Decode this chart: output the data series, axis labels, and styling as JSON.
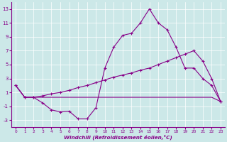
{
  "xlabel": "Windchill (Refroidissement éolien,°C)",
  "bg_color": "#cce8e8",
  "line_color": "#880088",
  "xlim": [
    -0.5,
    23.5
  ],
  "ylim": [
    -4,
    14
  ],
  "xticks": [
    0,
    1,
    2,
    3,
    4,
    5,
    6,
    7,
    8,
    9,
    10,
    11,
    12,
    13,
    14,
    15,
    16,
    17,
    18,
    19,
    20,
    21,
    22,
    23
  ],
  "yticks": [
    -3,
    -1,
    1,
    3,
    5,
    7,
    9,
    11,
    13
  ],
  "line1_x": [
    0,
    1,
    2,
    3,
    4,
    5,
    6,
    7,
    8,
    9,
    10,
    11,
    12,
    13,
    14,
    15,
    16,
    17,
    18,
    19,
    20,
    21,
    22,
    23
  ],
  "line1_y": [
    2.0,
    0.3,
    0.3,
    -0.5,
    -1.5,
    -1.8,
    -1.7,
    -2.8,
    -2.8,
    -1.2,
    4.5,
    7.5,
    9.2,
    9.5,
    11.0,
    13.0,
    11.0,
    10.0,
    7.5,
    4.5,
    4.5,
    3.0,
    2.0,
    -0.3
  ],
  "line2_x": [
    0,
    1,
    2,
    3,
    4,
    5,
    6,
    7,
    8,
    9,
    10,
    11,
    12,
    13,
    14,
    15,
    16,
    17,
    18,
    19,
    20,
    21,
    22,
    23
  ],
  "line2_y": [
    2.0,
    0.3,
    0.3,
    0.5,
    0.8,
    1.0,
    1.3,
    1.7,
    2.0,
    2.4,
    2.8,
    3.2,
    3.5,
    3.8,
    4.2,
    4.5,
    5.0,
    5.5,
    6.0,
    6.5,
    7.0,
    5.5,
    3.0,
    -0.3
  ],
  "line3_x": [
    0,
    1,
    2,
    3,
    4,
    5,
    6,
    7,
    8,
    9,
    10,
    11,
    12,
    13,
    14,
    15,
    16,
    17,
    18,
    19,
    20,
    21,
    22,
    23
  ],
  "line3_y": [
    2.0,
    0.3,
    0.3,
    0.3,
    0.3,
    0.3,
    0.3,
    0.3,
    0.3,
    0.3,
    0.3,
    0.3,
    0.3,
    0.3,
    0.3,
    0.3,
    0.3,
    0.3,
    0.3,
    0.3,
    0.3,
    0.3,
    0.3,
    -0.3
  ],
  "marker_size": 3,
  "lw": 0.8
}
